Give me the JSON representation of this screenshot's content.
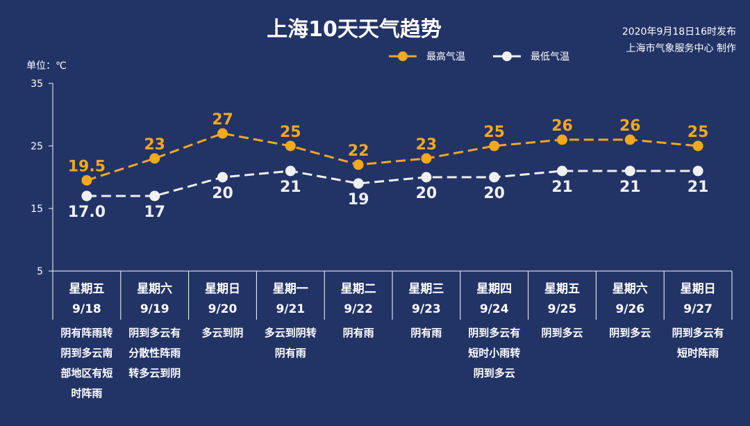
{
  "chart_data": {
    "type": "line",
    "title": "上海10天天气趋势",
    "publish_line1": "2020年9月18日16时发布",
    "publish_line2": "上海市气象服务中心 制作",
    "unit": "单位：℃",
    "ylim": [
      5,
      35
    ],
    "yticks": [
      "5",
      "15",
      "25",
      "35"
    ],
    "legend": [
      "最高气温",
      "最低气温"
    ],
    "categories": [
      "9/18",
      "9/19",
      "9/20",
      "9/21",
      "9/22",
      "9/23",
      "9/24",
      "9/25",
      "9/26",
      "9/27"
    ],
    "weekdays": [
      "星期五",
      "星期六",
      "星期日",
      "星期一",
      "星期二",
      "星期三",
      "星期四",
      "星期五",
      "星期六",
      "星期日"
    ],
    "series": [
      {
        "name": "最高气温",
        "values": [
          19.5,
          23,
          27,
          25,
          22,
          23,
          25,
          26,
          26,
          25
        ],
        "labels": [
          "19.5",
          "23",
          "27",
          "25",
          "22",
          "23",
          "25",
          "26",
          "26",
          "25"
        ],
        "color": "#f5a81c"
      },
      {
        "name": "最低气温",
        "values": [
          17.0,
          17,
          20,
          21,
          19,
          20,
          20,
          21,
          21,
          21
        ],
        "labels": [
          "17.0",
          "17",
          "20",
          "21",
          "19",
          "20",
          "20",
          "21",
          "21",
          "21"
        ],
        "color": "#f0f0f0"
      }
    ],
    "weather": [
      [
        "阴有阵雨转",
        "阴到多云南",
        "部地区有短",
        "时阵雨"
      ],
      [
        "阴到多云有",
        "分散性阵雨",
        "转多云到阴"
      ],
      [
        "多云到阴"
      ],
      [
        "多云到阴转",
        "阴有雨"
      ],
      [
        "阴有雨"
      ],
      [
        "阴有雨"
      ],
      [
        "阴到多云有",
        "短时小雨转",
        "阴到多云"
      ],
      [
        "阴到多云"
      ],
      [
        "阴到多云"
      ],
      [
        "阴到多云有",
        "短时阵雨"
      ]
    ]
  },
  "colors": {
    "background": "#223366",
    "high": "#f5a81c",
    "low": "#f0f0f0",
    "axis": "#ffffff"
  }
}
